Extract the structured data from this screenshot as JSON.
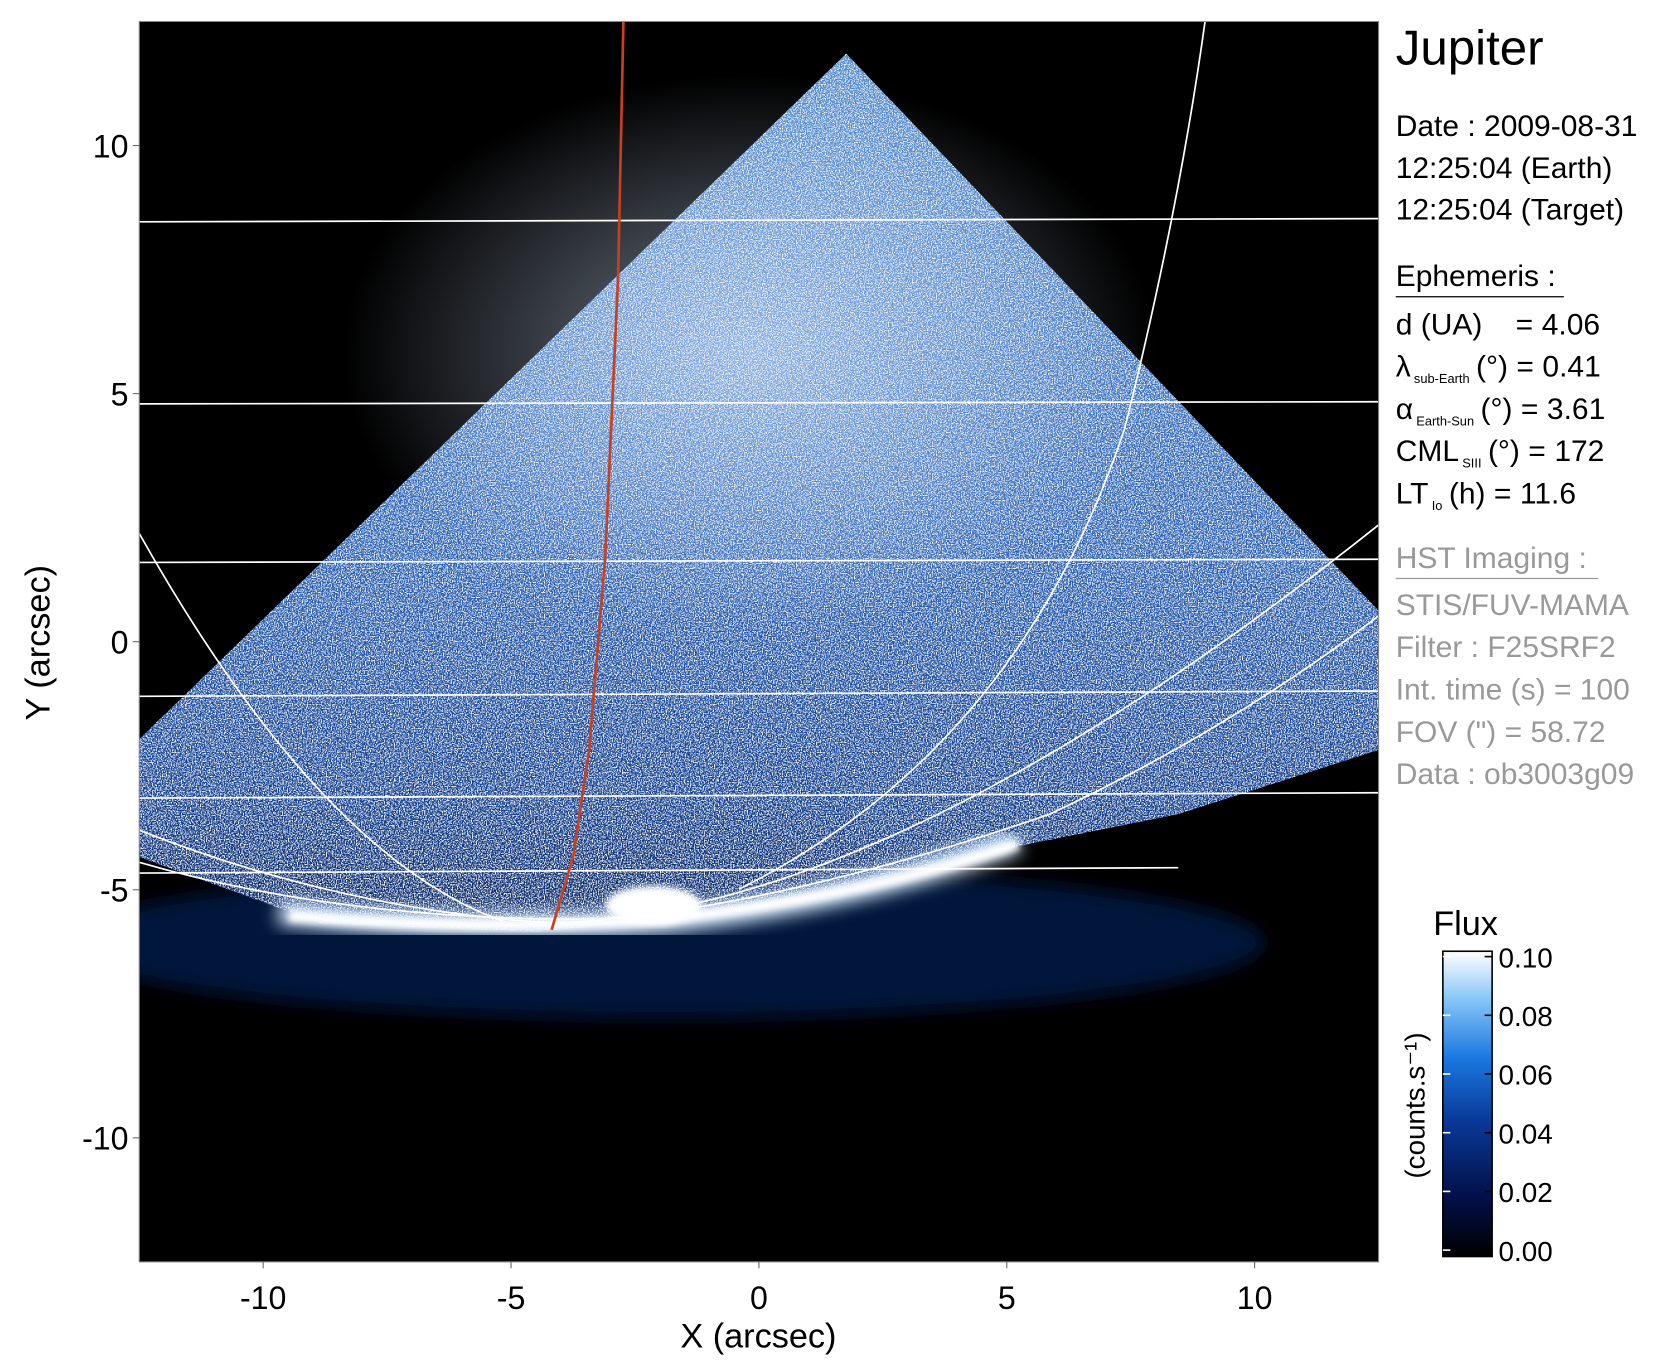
{
  "chart_data": {
    "type": "image",
    "title": "Jupiter",
    "x_label": "X (arcsec)",
    "y_label": "Y (arcsec)",
    "xlim": [
      -12.5,
      12.5
    ],
    "ylim": [
      -12.5,
      12.5
    ],
    "xticks": [
      -10,
      -5,
      0,
      5,
      10
    ],
    "yticks": [
      -10,
      -5,
      0,
      5,
      10
    ],
    "colorbar": {
      "title": "Flux",
      "label": "(counts.s⁻¹)",
      "clim": [
        0,
        0.1
      ],
      "ticks": [
        {
          "value": 0,
          "label": "0.00"
        },
        {
          "value": 0.02,
          "label": "0.02"
        },
        {
          "value": 0.04,
          "label": "0.04"
        },
        {
          "value": 0.06,
          "label": "0.06"
        },
        {
          "value": 0.08,
          "label": "0.08"
        },
        {
          "value": 0.1,
          "label": "0.10"
        }
      ]
    }
  },
  "info": {
    "date": [
      "Date : 2009-08-31",
      "12:25:04 (Earth)",
      "12:25:04 (Target)"
    ],
    "ephemeris_title": "Ephemeris :",
    "ephemeris": [
      {
        "label": "d (UA)    =",
        "value": 4.06
      },
      {
        "label": "λ",
        "sub": "sub-Earth",
        "unit": "(°) =",
        "value": 0.41
      },
      {
        "label": "α",
        "sub": "Earth-Sun",
        "unit": "(°) =",
        "value": 3.61
      },
      {
        "label": "CML",
        "sub": "SIII",
        "unit": "(°) =",
        "value": 172
      },
      {
        "label": "LT",
        "sub": "Io",
        "unit": "(h) =",
        "value": 11.6
      }
    ],
    "instrument_title": "HST Imaging :",
    "instrument": [
      "STIS/FUV-MAMA",
      "Filter : F25SRF2",
      "Int. time (s) = 100",
      "FOV (\") = 58.72",
      "Data : ob3003g09"
    ]
  }
}
